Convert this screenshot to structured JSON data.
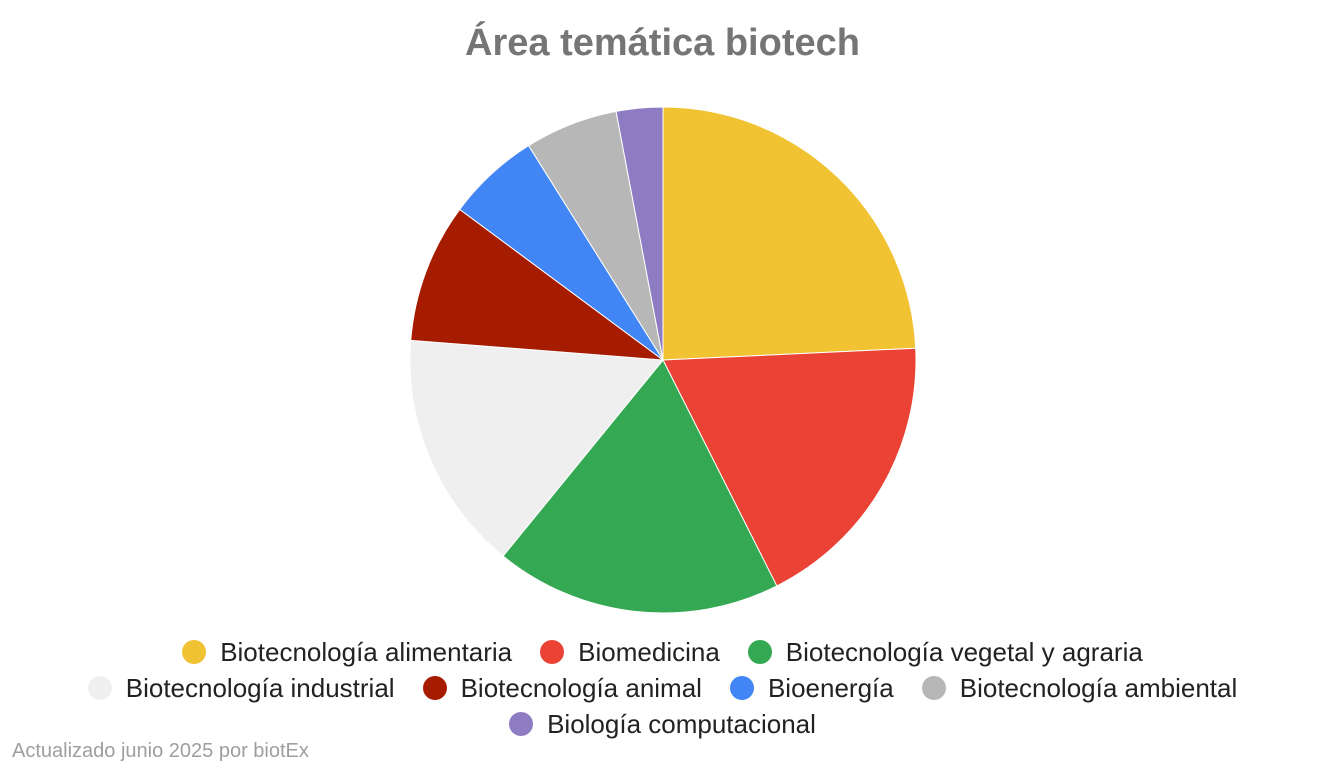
{
  "chart_data": {
    "type": "pie",
    "title": "Área temática biotech",
    "legend_position": "bottom",
    "slices": [
      {
        "label": "Biotecnología alimentaria",
        "value": 24.5,
        "color": "#f1c232"
      },
      {
        "label": "Biomedicina",
        "value": 18.5,
        "color": "#ea4335"
      },
      {
        "label": "Biotecnología vegetal y agraria",
        "value": 18.5,
        "color": "#34a853"
      },
      {
        "label": "Biotecnología industrial",
        "value": 15.5,
        "color": "#efefef"
      },
      {
        "label": "Biotecnología animal",
        "value": 9.0,
        "color": "#a61c00"
      },
      {
        "label": "Bioenergía",
        "value": 6.0,
        "color": "#4285f4"
      },
      {
        "label": "Biotecnología ambiental",
        "value": 6.0,
        "color": "#b7b7b7"
      },
      {
        "label": "Biología computacional",
        "value": 3.0,
        "color": "#8e7cc3"
      }
    ]
  },
  "footnote": "Actualizado junio 2025 por biotEx"
}
